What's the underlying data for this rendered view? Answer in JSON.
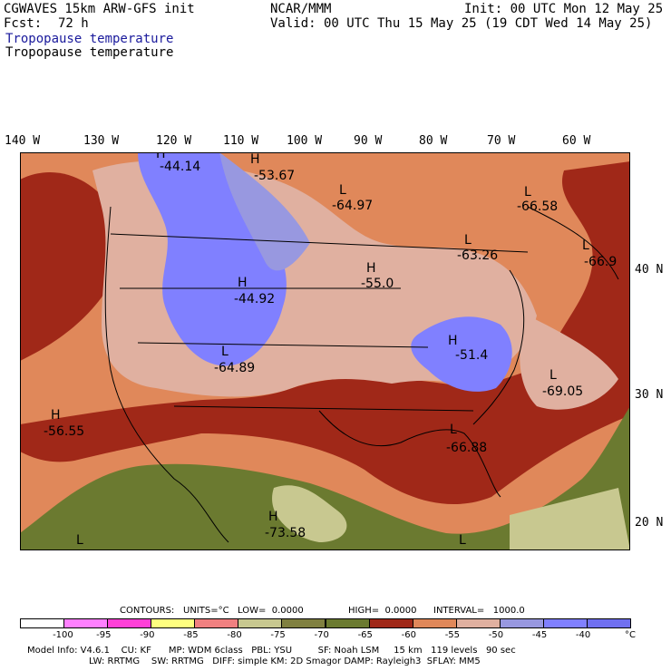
{
  "header": {
    "model": "CGWAVES 15km ARW-GFS init",
    "org": "NCAR/MMM",
    "init": "Init: 00 UTC Mon 12 May 25",
    "fcst_label": "Fcst:",
    "fcst_value": "72 h",
    "valid": "Valid: 00 UTC Thu 15 May 25 (19 CDT Wed 14 May 25)",
    "field_title_1": "Tropopause temperature",
    "field_title_2": "Tropopause temperature"
  },
  "axes": {
    "lon_labels": [
      "140 W",
      "130 W",
      "120 W",
      "110 W",
      "100 W",
      "90 W",
      "80 W",
      "70 W",
      "60 W"
    ],
    "lat_labels": [
      "40 N",
      "30 N",
      "20 N"
    ]
  },
  "centers": [
    {
      "type": "H",
      "value": "-44.14"
    },
    {
      "type": "H",
      "value": "-53.67"
    },
    {
      "type": "L",
      "value": "-64.97"
    },
    {
      "type": "L",
      "value": "-66.58"
    },
    {
      "type": "L",
      "value": "-63.26"
    },
    {
      "type": "L",
      "value": "-66.9"
    },
    {
      "type": "H",
      "value": "-44.92"
    },
    {
      "type": "H",
      "value": "-55.0"
    },
    {
      "type": "L",
      "value": "-64.89"
    },
    {
      "type": "H",
      "value": "-51.4"
    },
    {
      "type": "L",
      "value": "-69.05"
    },
    {
      "type": "H",
      "value": "-56.55"
    },
    {
      "type": "L",
      "value": "-66.88"
    },
    {
      "type": "H",
      "value": "-73.58"
    },
    {
      "type": "L",
      "value": ""
    },
    {
      "type": "L",
      "value": ""
    }
  ],
  "contour_info": {
    "contours": "CONTOURS:",
    "units": "UNITS=°C",
    "low": "LOW=  0.0000",
    "high": "HIGH=  0.0000",
    "interval": "INTERVAL=   1000.0"
  },
  "colorbar": {
    "colors": [
      "#ffffff",
      "#ff80ff",
      "#ff40d8",
      "#ffff80",
      "#f08080",
      "#c8c890",
      "#808040",
      "#6b7a30",
      "#a02818",
      "#e0885a",
      "#e0b0a0",
      "#9898e0",
      "#8080ff",
      "#7070f0"
    ],
    "tick_labels": [
      "-100",
      "-95",
      "-90",
      "-85",
      "-80",
      "-75",
      "-70",
      "-65",
      "-60",
      "-55",
      "-50",
      "-45",
      "-40"
    ],
    "unit": "°C"
  },
  "model_info": {
    "line1": "Model Info: V4.6.1    CU: KF      MP: WDM 6class   PBL: YSU         SF: Noah LSM     15 km   119 levels   90 sec",
    "line2": "LW: RRTMG    SW: RRTMG   DIFF: simple KM: 2D Smagor DAMP: Rayleigh3  SFLAY: MM5"
  }
}
